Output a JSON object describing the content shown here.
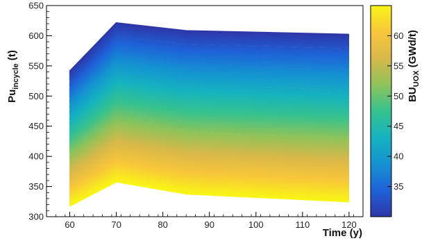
{
  "chart_data": {
    "type": "line",
    "x_axis": {
      "title": "Time (y)",
      "ticks": [
        60,
        70,
        80,
        90,
        100,
        110,
        120
      ],
      "range": [
        55,
        123
      ]
    },
    "y_axis": {
      "title_main": "Pu",
      "title_sub": "incycle",
      "title_unit": " (t)",
      "ticks": [
        300,
        350,
        400,
        450,
        500,
        550,
        600,
        650
      ],
      "range": [
        300,
        650
      ]
    },
    "colorbar": {
      "title_main": "BU",
      "title_sub": "UOX",
      "title_unit": " (GWd/t)",
      "ticks": [
        35,
        40,
        45,
        50,
        55,
        60
      ],
      "range": [
        30,
        65
      ],
      "colors": [
        "#2e37a8",
        "#1f62d8",
        "#1592d2",
        "#16b3bf",
        "#36c28f",
        "#8ec35a",
        "#d8b84a",
        "#f8c63a",
        "#f9f517"
      ]
    },
    "grid": false,
    "envelope": {
      "x": [
        60,
        70,
        85,
        120
      ],
      "top_line_y": [
        541,
        621,
        608,
        602
      ],
      "bottom_line_y": [
        318,
        358,
        338,
        325
      ]
    },
    "series_count": 360
  }
}
